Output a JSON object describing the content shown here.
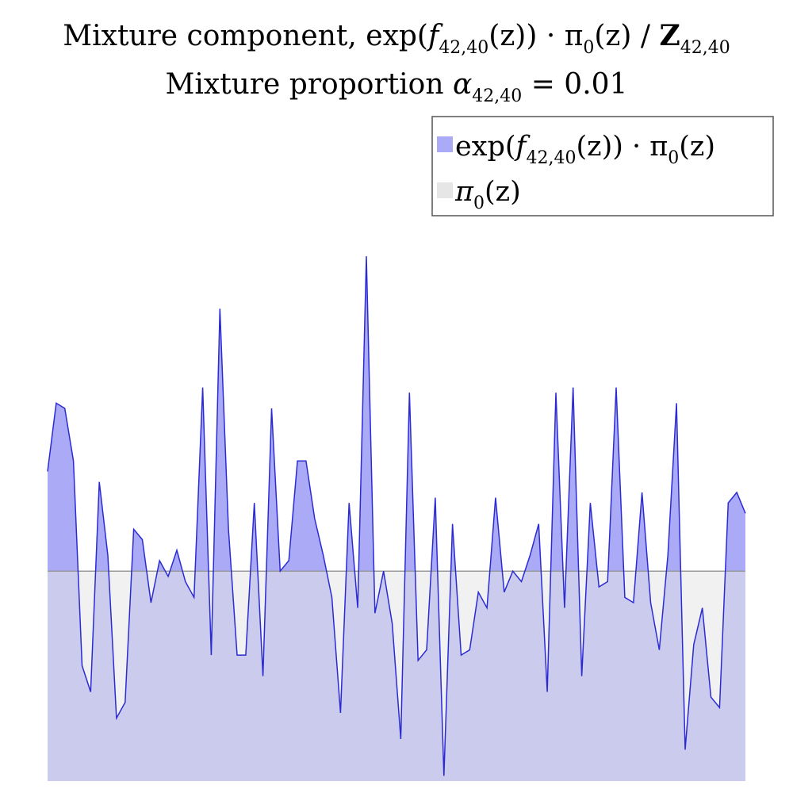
{
  "chart_data": {
    "type": "area",
    "title": {
      "line1": {
        "lead": "Mixture component, exp(",
        "f": "f",
        "f_sub": "42,40",
        "mid": "(z)) · π",
        "pi_sub": "0",
        "tail": "(z) / ",
        "Z": "Z",
        "Z_sub": "42,40"
      },
      "line2": {
        "lead": "Mixture proportion ",
        "alpha": "α",
        "alpha_sub": "42,40",
        "tail": " = 0.01"
      }
    },
    "xlabel": "",
    "ylabel": "",
    "grid": false,
    "axes_visible": false,
    "legend_position": "top-right",
    "ylim": [
      0,
      1.05
    ],
    "series": [
      {
        "key": "component",
        "legend": {
          "lead": "exp(",
          "f": "f",
          "f_sub": "42,40",
          "mid": "(z)) · π",
          "pi_sub": "0",
          "tail": "(z)"
        },
        "fill": "#aaaaf6",
        "stroke": "#2b2bd4",
        "values": [
          0.59,
          0.72,
          0.71,
          0.61,
          0.22,
          0.17,
          0.57,
          0.43,
          0.12,
          0.15,
          0.48,
          0.46,
          0.34,
          0.42,
          0.39,
          0.44,
          0.38,
          0.35,
          0.75,
          0.24,
          0.9,
          0.48,
          0.24,
          0.24,
          0.53,
          0.2,
          0.71,
          0.4,
          0.42,
          0.61,
          0.61,
          0.5,
          0.43,
          0.35,
          0.13,
          0.53,
          0.33,
          1.0,
          0.32,
          0.4,
          0.3,
          0.08,
          0.74,
          0.23,
          0.25,
          0.54,
          0.01,
          0.49,
          0.24,
          0.25,
          0.36,
          0.33,
          0.54,
          0.36,
          0.4,
          0.38,
          0.43,
          0.49,
          0.17,
          0.74,
          0.33,
          0.75,
          0.2,
          0.53,
          0.37,
          0.38,
          0.75,
          0.35,
          0.34,
          0.55,
          0.34,
          0.25,
          0.43,
          0.72,
          0.06,
          0.26,
          0.33,
          0.16,
          0.14,
          0.53,
          0.55,
          0.51
        ]
      },
      {
        "key": "base",
        "legend": {
          "pi": "π",
          "pi_sub": "0",
          "tail": "(z)"
        },
        "fill": "#e6e6e6",
        "stroke": "#999999",
        "values": [
          0.4,
          0.4
        ]
      }
    ]
  }
}
